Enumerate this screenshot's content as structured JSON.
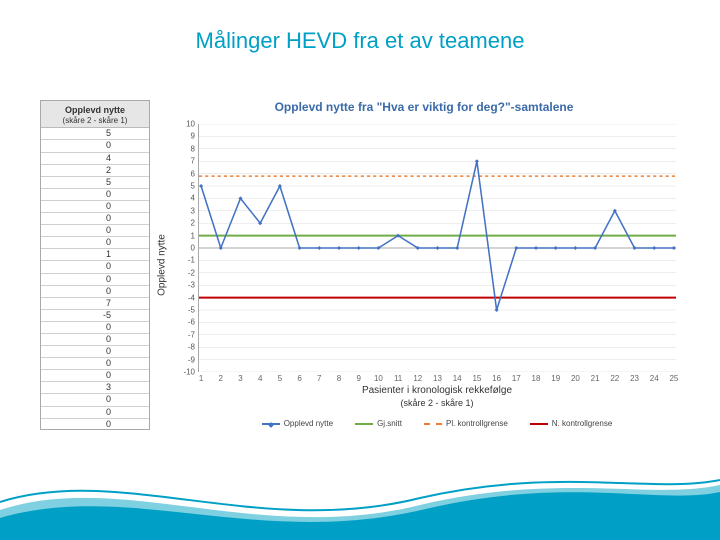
{
  "page": {
    "title": "Målinger HEVD fra et av teamene",
    "title_color": "#00a0c6",
    "title_fontsize": 22
  },
  "table": {
    "header": "Opplevd nytte",
    "subheader": "(skåre 2 - skåre 1)",
    "header_bg": "#e6e6e6",
    "border_color": "#a9a9a9",
    "font_size": 9,
    "values": [
      5,
      0,
      4,
      2,
      5,
      0,
      0,
      0,
      0,
      0,
      1,
      0,
      0,
      0,
      7,
      -5,
      0,
      0,
      0,
      0,
      0,
      3,
      0,
      0,
      0
    ]
  },
  "chart": {
    "type": "line",
    "title": "Opplevd nytte fra \"Hva er viktig for deg?\"-samtalene",
    "title_color": "#3a6aa8",
    "title_fontsize": 12,
    "y_axis_label": "Opplevd nytte",
    "x_axis_label": "Pasienter i kronologisk rekkefølge",
    "x_axis_sublabel": "(skåre 2 - skåre 1)",
    "axis_font_size": 8,
    "background_color": "#ffffff",
    "grid_color": "#dddddd",
    "ylim": [
      -10,
      10
    ],
    "ytick_step": 1,
    "xlim": [
      1,
      25
    ],
    "xtick_step": 1,
    "series_line": {
      "label": "Opplevd nytte",
      "color": "#4472c4",
      "width": 1.5,
      "marker": "diamond",
      "marker_size": 4,
      "values": [
        5,
        0,
        4,
        2,
        5,
        0,
        0,
        0,
        0,
        0,
        1,
        0,
        0,
        0,
        7,
        -5,
        0,
        0,
        0,
        0,
        0,
        3,
        0,
        0,
        0
      ]
    },
    "series_mean": {
      "label": "Gj.snitt",
      "color": "#70ad47",
      "width": 2,
      "value": 1
    },
    "series_upper": {
      "label": "Pl. kontrollgrense",
      "color": "#ed7d31",
      "width": 1.5,
      "dash": "3,3",
      "value": 5.8
    },
    "series_lower": {
      "label": "N. kontrollgrense",
      "color": "#c00000",
      "width": 2,
      "value": -4.0
    },
    "legend_font_size": 8
  },
  "wave": {
    "color_dark": "#00a0c6",
    "color_light": "#7fd0e0"
  }
}
